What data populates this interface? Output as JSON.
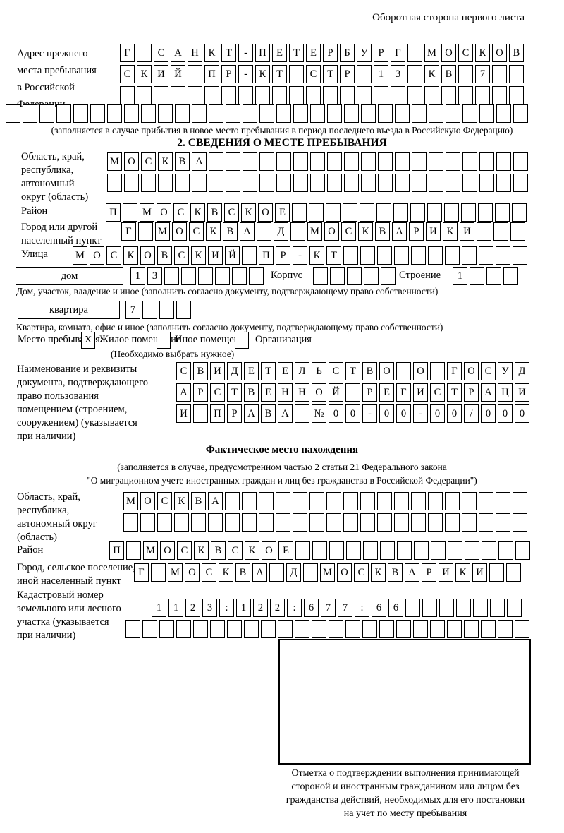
{
  "corner_note": "Оборотная сторона первого листа",
  "prev": {
    "label": [
      "Адрес прежнего",
      "места пребывания",
      "в Российской",
      "Федерации"
    ],
    "row1": [
      "Г",
      "",
      "С",
      "А",
      "Н",
      "К",
      "Т",
      "-",
      "П",
      "Е",
      "Т",
      "Е",
      "Р",
      "Б",
      "У",
      "Р",
      "Г",
      "",
      "М",
      "О",
      "С",
      "К",
      "О",
      "В"
    ],
    "row2": [
      "С",
      "К",
      "И",
      "Й",
      "",
      "П",
      "Р",
      "-",
      "К",
      "Т",
      "",
      "С",
      "Т",
      "Р",
      "",
      "1",
      "3",
      "",
      "К",
      "В",
      "",
      "7",
      "",
      ""
    ],
    "row3": [
      "",
      "",
      "",
      "",
      "",
      "",
      "",
      "",
      "",
      "",
      "",
      "",
      "",
      "",
      "",
      "",
      "",
      "",
      "",
      "",
      "",
      "",
      "",
      ""
    ],
    "row4": [
      "",
      "",
      "",
      "",
      "",
      "",
      "",
      "",
      "",
      "",
      "",
      "",
      "",
      "",
      "",
      "",
      "",
      "",
      "",
      "",
      "",
      "",
      "",
      "",
      "",
      "",
      "",
      "",
      "",
      "",
      ""
    ],
    "caption": "(заполняется в случае прибытия в новое место пребывания в период последнего въезда в Российскую Федерацию)"
  },
  "s2": {
    "title": "2. СВЕДЕНИЯ О МЕСТЕ ПРЕБЫВАНИЯ",
    "oblast_label": [
      "Область, край,",
      "республика,",
      "автономный",
      "округ (область)"
    ],
    "oblast_row1": [
      "М",
      "О",
      "С",
      "К",
      "В",
      "А",
      "",
      "",
      "",
      "",
      "",
      "",
      "",
      "",
      "",
      "",
      "",
      "",
      "",
      "",
      "",
      "",
      "",
      "",
      ""
    ],
    "oblast_row2": [
      "",
      "",
      "",
      "",
      "",
      "",
      "",
      "",
      "",
      "",
      "",
      "",
      "",
      "",
      "",
      "",
      "",
      "",
      "",
      "",
      "",
      "",
      "",
      "",
      ""
    ],
    "rayon_label": "Район",
    "rayon_row": [
      "П",
      "",
      "М",
      "О",
      "С",
      "К",
      "В",
      "С",
      "К",
      "О",
      "Е",
      "",
      "",
      "",
      "",
      "",
      "",
      "",
      "",
      "",
      "",
      "",
      "",
      "",
      ""
    ],
    "gorod_label": [
      "Город или другой",
      "населенный пункт"
    ],
    "gorod_row": [
      "Г",
      "",
      "М",
      "О",
      "С",
      "К",
      "В",
      "А",
      "",
      "Д",
      "",
      "М",
      "О",
      "С",
      "К",
      "В",
      "А",
      "Р",
      "И",
      "К",
      "И",
      "",
      "",
      ""
    ],
    "ulitsa_label": "Улица",
    "ulitsa_row": [
      "М",
      "О",
      "С",
      "К",
      "О",
      "В",
      "С",
      "К",
      "И",
      "Й",
      "",
      "П",
      "Р",
      "-",
      "К",
      "Т",
      "",
      "",
      "",
      "",
      "",
      "",
      "",
      "",
      "",
      "",
      ""
    ],
    "dom_box_label": "дом",
    "dom_cells": [
      "1",
      "3",
      "",
      "",
      "",
      "",
      "",
      ""
    ],
    "korpus_label": "Корпус",
    "korpus_cells": [
      "",
      "",
      "",
      "",
      ""
    ],
    "stroenie_label": "Строение",
    "stroenie_cells": [
      "1",
      "",
      "",
      ""
    ],
    "dom_caption": "Дом, участок, владение и иное (заполнить согласно документу, подтверждающему право собственности)",
    "kvartira_box_label": "квартира",
    "kvartira_cells": [
      "7",
      "",
      "",
      ""
    ],
    "kvartira_caption": "Квартира, комната, офис и иное (заполнить согласно документу, подтверждающему право собственности)",
    "mesto_label": "Место пребывания:",
    "mesto_options": [
      {
        "label": "Жилое помещение",
        "mark": "X"
      },
      {
        "label": "Иное помещение",
        "mark": ""
      },
      {
        "label": "Организация",
        "mark": ""
      }
    ],
    "mesto_note": "(Необходимо выбрать нужное)",
    "doc_label": [
      "Наименование и реквизиты",
      "документа, подтверждающего",
      "право пользования",
      "помещением (строением,",
      "сооружением) (указывается",
      "при наличии)"
    ],
    "doc_row1": [
      "С",
      "В",
      "И",
      "Д",
      "Е",
      "Т",
      "Е",
      "Л",
      "Ь",
      "С",
      "Т",
      "В",
      "О",
      "",
      "О",
      "",
      "Г",
      "О",
      "С",
      "У",
      "Д"
    ],
    "doc_row2": [
      "А",
      "Р",
      "С",
      "Т",
      "В",
      "Е",
      "Н",
      "Н",
      "О",
      "Й",
      "",
      "Р",
      "Е",
      "Г",
      "И",
      "С",
      "Т",
      "Р",
      "А",
      "Ц",
      "И"
    ],
    "doc_row3": [
      "И",
      "",
      "П",
      "Р",
      "А",
      "В",
      "А",
      "",
      "№",
      "0",
      "0",
      "-",
      "0",
      "0",
      "-",
      "0",
      "0",
      "/",
      "0",
      "0",
      "0"
    ]
  },
  "fact": {
    "title": "Фактическое место нахождения",
    "note": [
      "(заполняется в случае, предусмотренном частью 2 статьи 21 Федерального закона",
      "\"О миграционном учете иностранных граждан и лиц без гражданства в Российской Федерации\")"
    ],
    "oblast_label": [
      "Область, край,",
      "республика,",
      "автономный округ",
      "(область)"
    ],
    "oblast_row1": [
      "М",
      "О",
      "С",
      "К",
      "В",
      "А",
      "",
      "",
      "",
      "",
      "",
      "",
      "",
      "",
      "",
      "",
      "",
      "",
      "",
      "",
      "",
      "",
      "",
      ""
    ],
    "oblast_row2": [
      "",
      "",
      "",
      "",
      "",
      "",
      "",
      "",
      "",
      "",
      "",
      "",
      "",
      "",
      "",
      "",
      "",
      "",
      "",
      "",
      "",
      "",
      "",
      ""
    ],
    "rayon_label": "Район",
    "rayon_row": [
      "П",
      "",
      "М",
      "О",
      "С",
      "К",
      "В",
      "С",
      "К",
      "О",
      "Е",
      "",
      "",
      "",
      "",
      "",
      "",
      "",
      "",
      "",
      "",
      "",
      "",
      "",
      ""
    ],
    "gorod_label": [
      "Город, сельское поселение,",
      "иной населенный пункт"
    ],
    "gorod_row": [
      "Г",
      "",
      "М",
      "О",
      "С",
      "К",
      "В",
      "А",
      "",
      "Д",
      "",
      "М",
      "О",
      "С",
      "К",
      "В",
      "А",
      "Р",
      "И",
      "К",
      "И",
      "",
      ""
    ],
    "kadastr_label": [
      "Кадастровый номер",
      "земельного или лесного",
      "участка (указывается",
      "при наличии)"
    ],
    "kadastr_row1": [
      "1",
      "1",
      "2",
      "3",
      ":",
      "1",
      "2",
      "2",
      ":",
      "6",
      "7",
      "7",
      ":",
      "6",
      "6",
      "",
      "",
      "",
      "",
      "",
      "",
      ""
    ],
    "kadastr_row2": [
      "",
      "",
      "",
      "",
      "",
      "",
      "",
      "",
      "",
      "",
      "",
      "",
      "",
      "",
      "",
      "",
      "",
      "",
      "",
      "",
      "",
      "",
      "",
      ""
    ],
    "stamp_caption": [
      "Отметка о подтверждении выполнения принимающей",
      "стороной и иностранным гражданином или лицом без",
      "гражданства действий, необходимых для его постановки",
      "на учет по месту пребывания"
    ]
  }
}
